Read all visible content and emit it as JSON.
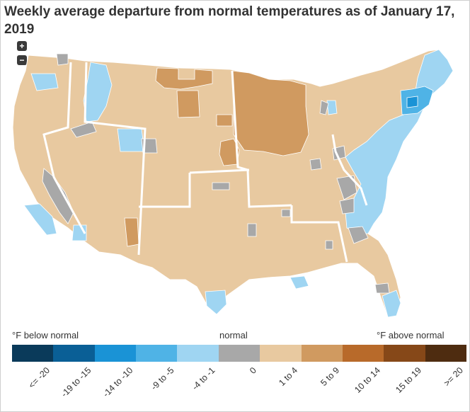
{
  "title": "Weekly average departure from normal temperatures as of January 17, 2019",
  "zoom": {
    "in_label": "+",
    "out_label": "−"
  },
  "legend": {
    "left_label": "°F below normal",
    "center_label": "normal",
    "right_label": "°F above normal",
    "bins": [
      {
        "label": "<= -20",
        "color": "#0a3a5a"
      },
      {
        "label": "-19 to -15",
        "color": "#0a5f96"
      },
      {
        "label": "-14 to -10",
        "color": "#1a93d6"
      },
      {
        "label": "-9 to -5",
        "color": "#4fb3e6"
      },
      {
        "label": "-4 to -1",
        "color": "#9fd5f2"
      },
      {
        "label": "0",
        "color": "#a8a8a8"
      },
      {
        "label": "1 to 4",
        "color": "#e8c9a0"
      },
      {
        "label": "5 to 9",
        "color": "#d09a60"
      },
      {
        "label": "10 to 14",
        "color": "#b86a2a"
      },
      {
        "label": "15 to 19",
        "color": "#864818"
      },
      {
        "label": ">= 20",
        "color": "#4e2c10"
      }
    ]
  },
  "map_colors": {
    "background": "#ffffff",
    "border": "#ffffff"
  }
}
